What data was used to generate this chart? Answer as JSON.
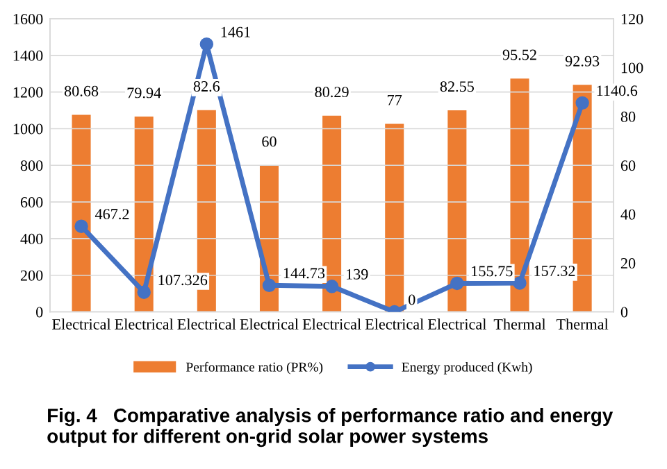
{
  "chart_data": {
    "type": "bar",
    "title": "Fig. 4   Comparative analysis of performance ratio and energy output for different on-grid solar power systems",
    "categories": [
      "Electrical",
      "Electrical",
      "Electrical",
      "Electrical",
      "Electrical",
      "Electrical",
      "Electrical",
      "Thermal",
      "Thermal"
    ],
    "series": [
      {
        "name": "Performance ratio (PR%)",
        "axis": "y2",
        "color": "#ed7d31",
        "values": [
          80.68,
          79.94,
          82.6,
          60,
          80.29,
          77,
          82.55,
          95.52,
          92.93
        ]
      },
      {
        "name": "Energy produced (Kwh)",
        "type": "line",
        "axis": "y",
        "color": "#4472c4",
        "marker": "circle",
        "values": [
          467.2,
          107.326,
          1461,
          144.73,
          139,
          0,
          155.75,
          157.32,
          1140.6
        ]
      }
    ],
    "ylim": [
      0,
      1600
    ],
    "yticks": [
      0,
      200,
      400,
      600,
      800,
      1000,
      1200,
      1400,
      1600
    ],
    "y2lim": [
      0,
      120
    ],
    "y2ticks": [
      0,
      20,
      40,
      60,
      80,
      100,
      120
    ],
    "grid": "y",
    "legend": "bottom",
    "data_labels": true
  }
}
